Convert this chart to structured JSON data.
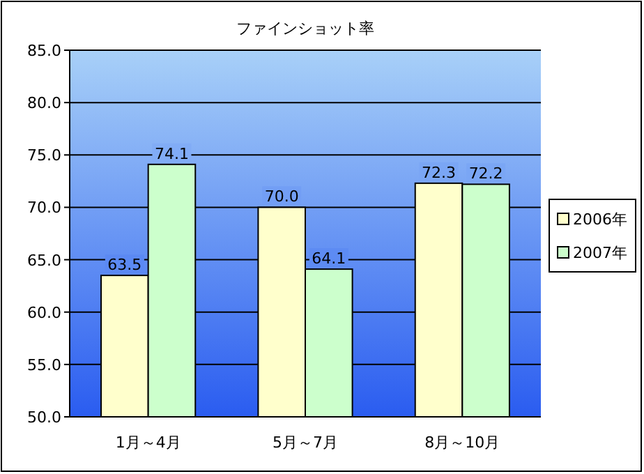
{
  "chart_data": {
    "type": "bar",
    "title": "ファインショット率",
    "categories": [
      "1月～4月",
      "5月～7月",
      "8月～10月"
    ],
    "series": [
      {
        "name": "2006年",
        "color": "#ffffcc",
        "values": [
          63.5,
          70.0,
          72.3
        ]
      },
      {
        "name": "2007年",
        "color": "#ccffcc",
        "values": [
          74.1,
          64.1,
          72.2
        ]
      }
    ],
    "ylim": [
      50,
      85
    ],
    "yticks": [
      {
        "value": 50,
        "label": "50.0"
      },
      {
        "value": 55,
        "label": "55.0"
      },
      {
        "value": 60,
        "label": "60.0"
      },
      {
        "value": 65,
        "label": "65.0"
      },
      {
        "value": 70,
        "label": "70.0"
      },
      {
        "value": 75,
        "label": "75.0"
      },
      {
        "value": 80,
        "label": "80.0"
      },
      {
        "value": 85,
        "label": "85.0"
      }
    ],
    "value_labels": [
      [
        "63.5",
        "70.0",
        "72.3"
      ],
      [
        "74.1",
        "64.1",
        "72.2"
      ]
    ],
    "grid": "y",
    "legend": "right"
  }
}
